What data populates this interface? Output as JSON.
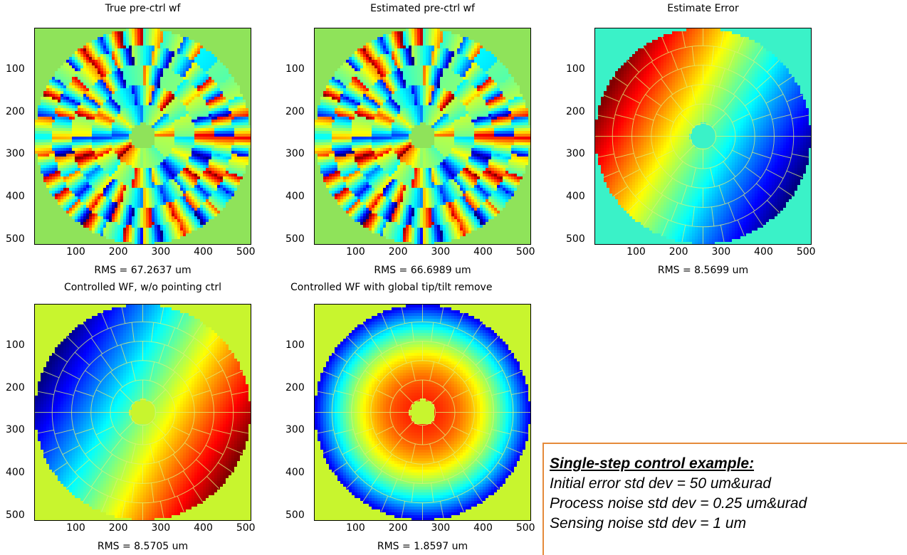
{
  "chart_data": [
    {
      "type": "heatmap",
      "title": "True pre-ctrl wf",
      "pattern": "segmented-random",
      "background": "#8fe35a",
      "xlim": [
        1,
        512
      ],
      "ylim": [
        512,
        1
      ],
      "xticks": [
        "100",
        "200",
        "300",
        "400",
        "500"
      ],
      "yticks": [
        "100",
        "200",
        "300",
        "400",
        "500"
      ],
      "xlabel": "RMS = 67.2637 um",
      "colormap": "jet"
    },
    {
      "type": "heatmap",
      "title": "Estimated pre-ctrl wf",
      "pattern": "segmented-random",
      "background": "#8fe35a",
      "xlim": [
        1,
        512
      ],
      "ylim": [
        512,
        1
      ],
      "xticks": [
        "100",
        "200",
        "300",
        "400",
        "500"
      ],
      "yticks": [
        "100",
        "200",
        "300",
        "400",
        "500"
      ],
      "xlabel": "RMS = 66.6989 um",
      "colormap": "jet"
    },
    {
      "type": "heatmap",
      "title": "Estimate Error",
      "pattern": "tilt-error",
      "background": "#3af2c8",
      "xlim": [
        1,
        512
      ],
      "ylim": [
        512,
        1
      ],
      "xticks": [
        "100",
        "200",
        "300",
        "400",
        "500"
      ],
      "yticks": [
        "100",
        "200",
        "300",
        "400",
        "500"
      ],
      "xlabel": "RMS = 8.5699 um",
      "colormap": "jet"
    },
    {
      "type": "heatmap",
      "title": "Controlled WF, w/o pointing ctrl",
      "pattern": "tilt-controlled",
      "background": "#c8f52e",
      "xlim": [
        1,
        512
      ],
      "ylim": [
        512,
        1
      ],
      "xticks": [
        "100",
        "200",
        "300",
        "400",
        "500"
      ],
      "yticks": [
        "100",
        "200",
        "300",
        "400",
        "500"
      ],
      "xlabel": "RMS = 8.5705 um",
      "colormap": "jet"
    },
    {
      "type": "heatmap",
      "title": "Controlled WF with global tip/tilt remove",
      "pattern": "bowl",
      "background": "#c8f52e",
      "xlim": [
        1,
        512
      ],
      "ylim": [
        512,
        1
      ],
      "xticks": [
        "100",
        "200",
        "300",
        "400",
        "500"
      ],
      "yticks": [
        "100",
        "200",
        "300",
        "400",
        "500"
      ],
      "xlabel": "RMS = 1.8597 um",
      "colormap": "jet"
    }
  ],
  "note": {
    "heading": "Single-step control example:",
    "lines": [
      "Initial error std dev = 50 um&urad",
      "Process noise std dev = 0.25 um&urad",
      "Sensing noise std dev = 1 um"
    ]
  }
}
